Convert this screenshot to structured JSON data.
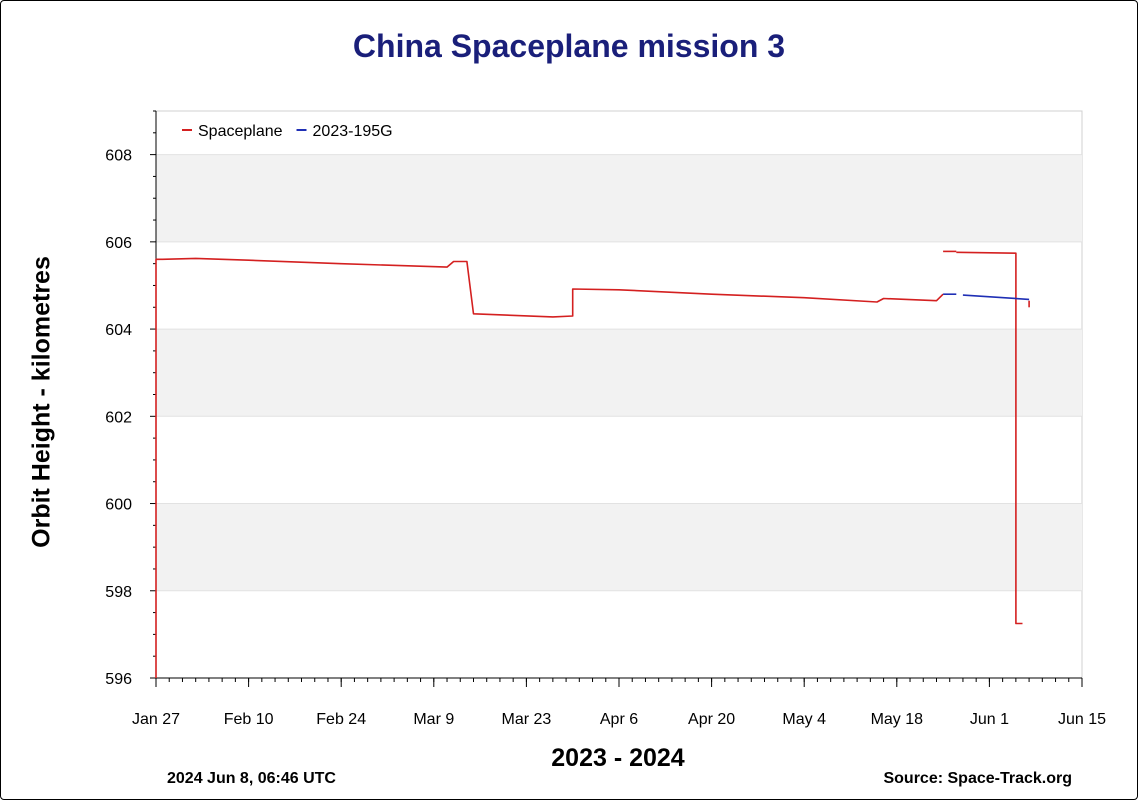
{
  "chart_data": {
    "type": "line",
    "title": "China Spaceplane mission 3",
    "xlabel": "2023 - 2024",
    "ylabel": "Orbit Height - kilometres",
    "x_unit": "date (2024)",
    "xlim": [
      "2024-01-27",
      "2024-06-15"
    ],
    "ylim": [
      596,
      609
    ],
    "x_ticks": [
      "Jan 27",
      "Feb 10",
      "Feb 24",
      "Mar 9",
      "Mar 23",
      "Apr 6",
      "Apr 20",
      "May 4",
      "May 18",
      "Jun 1",
      "Jun 15"
    ],
    "x_tick_dates": [
      "2024-01-27",
      "2024-02-10",
      "2024-02-24",
      "2024-03-09",
      "2024-03-23",
      "2024-04-06",
      "2024-04-20",
      "2024-05-04",
      "2024-05-18",
      "2024-06-01",
      "2024-06-15"
    ],
    "y_ticks": [
      596,
      598,
      600,
      602,
      604,
      606,
      608
    ],
    "grid": "alternating horizontal bands",
    "legend_position": "top-left",
    "colors": {
      "Spaceplane": "#d42020",
      "2023-195G": "#1f2fb5",
      "title": "#1a1f7a",
      "band": "#f2f2f2"
    },
    "series": [
      {
        "name": "Spaceplane",
        "color": "#d42020",
        "segments": [
          {
            "x": [
              "2024-01-27",
              "2024-01-27",
              "2024-01-28",
              "2024-02-02",
              "2024-02-10",
              "2024-02-24",
              "2024-03-11",
              "2024-03-12",
              "2024-03-14",
              "2024-03-15",
              "2024-03-27",
              "2024-03-30",
              "2024-03-30",
              "2024-04-06",
              "2024-04-20",
              "2024-05-04",
              "2024-05-15",
              "2024-05-16",
              "2024-05-24",
              "2024-05-25"
            ],
            "y": [
              596,
              605.6,
              605.6,
              605.62,
              605.58,
              605.5,
              605.42,
              605.55,
              605.55,
              604.35,
              604.28,
              604.3,
              604.92,
              604.9,
              604.8,
              604.72,
              604.62,
              604.7,
              604.65,
              604.8
            ]
          },
          {
            "x": [
              "2024-05-25",
              "2024-05-27"
            ],
            "y": [
              605.78,
              605.78
            ]
          },
          {
            "x": [
              "2024-05-27",
              "2024-06-05",
              "2024-06-05",
              "2024-06-05",
              "2024-06-05",
              "2024-06-06"
            ],
            "y": [
              605.76,
              605.74,
              603.0,
              599.0,
              597.25,
              597.25
            ]
          },
          {
            "x": [
              "2024-06-07",
              "2024-06-07"
            ],
            "y": [
              604.5,
              604.65
            ]
          }
        ]
      },
      {
        "name": "2023-195G",
        "color": "#1f2fb5",
        "segments": [
          {
            "x": [
              "2024-05-25",
              "2024-05-27"
            ],
            "y": [
              604.8,
              604.8
            ]
          },
          {
            "x": [
              "2024-05-28",
              "2024-06-07"
            ],
            "y": [
              604.78,
              604.68
            ]
          }
        ]
      }
    ]
  },
  "footer": {
    "timestamp": "2024 Jun 8, 06:46 UTC",
    "source": "Source: Space-Track.org"
  }
}
